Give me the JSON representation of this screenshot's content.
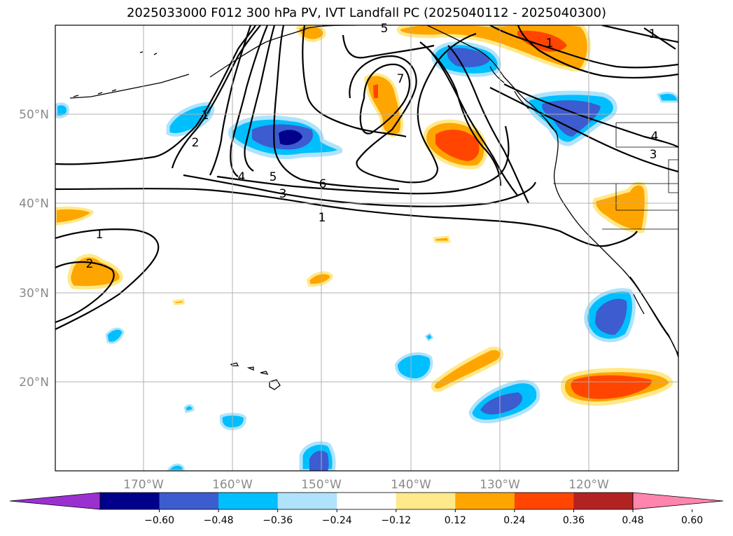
{
  "title": "2025033000 F012 300 hPa PV, IVT Landfall PC (2025040112 - 2025040300)",
  "map": {
    "lat_labels": [
      "50°N",
      "40°N",
      "30°N",
      "20°N"
    ],
    "lon_labels": [
      "170°W",
      "160°W",
      "150°W",
      "140°W",
      "130°W",
      "120°W"
    ],
    "contour_labels": [
      "1",
      "2",
      "1",
      "2",
      "4",
      "5",
      "6",
      "3",
      "1",
      "7",
      "5",
      "1",
      "1",
      "4",
      "3"
    ]
  },
  "colorbar": {
    "colors": [
      "#9b30d0",
      "#00008b",
      "#3c5cd0",
      "#00bfff",
      "#afe3fb",
      "#ffffff",
      "#ffe98a",
      "#ffa500",
      "#ff4500",
      "#b22222",
      "#ff85ae"
    ],
    "tick_labels": [
      "−0.60",
      "−0.48",
      "−0.36",
      "−0.24",
      "−0.12",
      "0.12",
      "0.24",
      "0.36",
      "0.48",
      "0.60"
    ]
  },
  "colors": {
    "orange": "#ffa500",
    "red_orange": "#ff4500",
    "light_yellow": "#ffe98a",
    "blue": "#00bfff",
    "medium_blue": "#3c5cd0",
    "navy": "#00008b",
    "light_blue": "#afe3fb",
    "grid": "#b0b0b0"
  }
}
